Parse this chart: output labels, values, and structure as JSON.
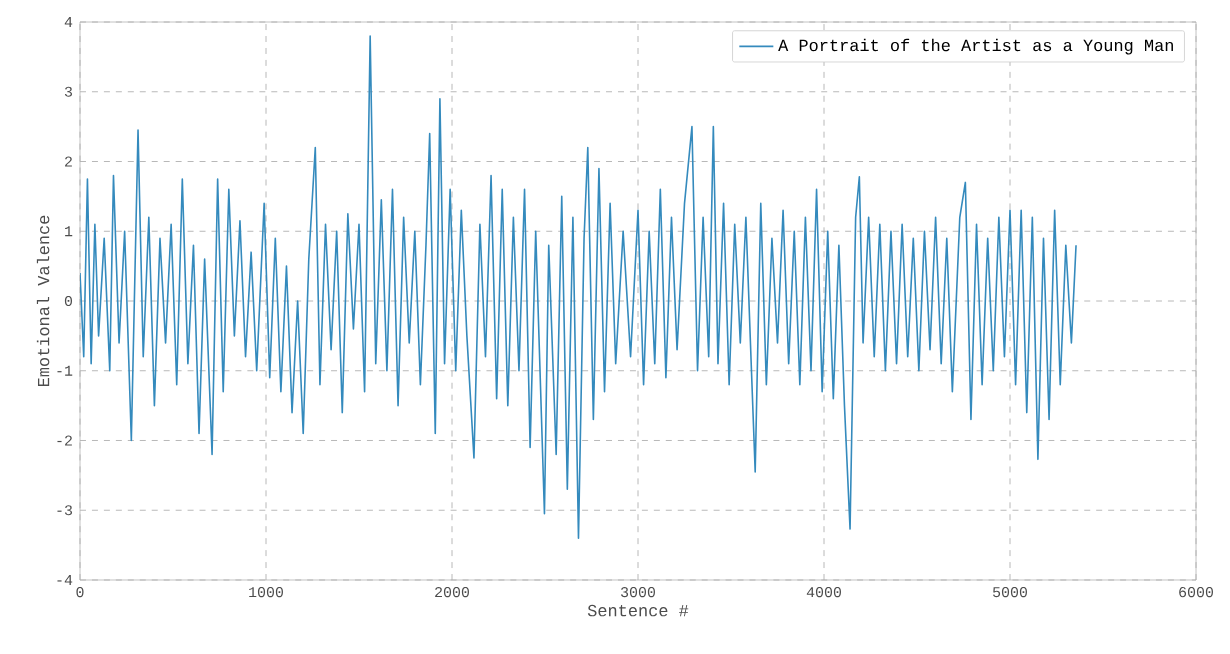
{
  "chart_data": {
    "type": "line",
    "xlabel": "Sentence #",
    "ylabel": "Emotional Valence",
    "xlim": [
      0,
      6000
    ],
    "ylim": [
      -4,
      4
    ],
    "xticks": [
      0,
      1000,
      2000,
      3000,
      4000,
      5000,
      6000
    ],
    "yticks": [
      -4,
      -3,
      -2,
      -1,
      0,
      1,
      2,
      3,
      4
    ],
    "grid": true,
    "legend": "top right",
    "line_style": "solid",
    "marker": "none",
    "x": [
      0,
      20,
      40,
      60,
      80,
      100,
      130,
      160,
      180,
      210,
      240,
      276,
      312,
      340,
      370,
      400,
      430,
      460,
      490,
      520,
      550,
      580,
      610,
      640,
      670,
      710,
      740,
      770,
      800,
      830,
      860,
      890,
      920,
      950,
      990,
      1020,
      1050,
      1080,
      1110,
      1140,
      1170,
      1200,
      1230,
      1265,
      1290,
      1320,
      1350,
      1380,
      1410,
      1440,
      1470,
      1500,
      1530,
      1560,
      1590,
      1620,
      1650,
      1680,
      1710,
      1740,
      1770,
      1800,
      1830,
      1860,
      1880,
      1910,
      1935,
      1960,
      1990,
      2020,
      2050,
      2080,
      2118,
      2150,
      2180,
      2210,
      2240,
      2270,
      2300,
      2330,
      2360,
      2390,
      2420,
      2450,
      2497,
      2520,
      2560,
      2590,
      2620,
      2650,
      2680,
      2710,
      2730,
      2760,
      2790,
      2820,
      2850,
      2880,
      2920,
      2960,
      3000,
      3030,
      3060,
      3090,
      3120,
      3150,
      3180,
      3210,
      3250,
      3290,
      3320,
      3350,
      3380,
      3405,
      3430,
      3460,
      3490,
      3520,
      3550,
      3580,
      3610,
      3630,
      3660,
      3690,
      3720,
      3750,
      3780,
      3810,
      3840,
      3870,
      3900,
      3930,
      3960,
      3990,
      4020,
      4050,
      4080,
      4110,
      4140,
      4170,
      4190,
      4210,
      4240,
      4270,
      4300,
      4330,
      4360,
      4390,
      4420,
      4450,
      4480,
      4510,
      4540,
      4570,
      4600,
      4630,
      4660,
      4690,
      4730,
      4760,
      4790,
      4820,
      4850,
      4880,
      4910,
      4940,
      4970,
      5000,
      5030,
      5060,
      5090,
      5120,
      5150,
      5180,
      5210,
      5240,
      5270,
      5300,
      5330,
      5355
    ],
    "series": [
      {
        "name": "A Portrait of the Artist as a Young Man",
        "color": "#348abd",
        "values": [
          0.4,
          -0.8,
          1.75,
          -0.9,
          1.1,
          -0.5,
          0.9,
          -1.0,
          1.8,
          -0.6,
          1.0,
          -2.0,
          2.45,
          -0.8,
          1.2,
          -1.5,
          0.9,
          -0.6,
          1.1,
          -1.2,
          1.75,
          -0.9,
          0.8,
          -1.9,
          0.6,
          -2.2,
          1.75,
          -1.3,
          1.6,
          -0.5,
          1.15,
          -0.8,
          0.7,
          -1.0,
          1.4,
          -1.1,
          0.9,
          -1.3,
          0.5,
          -1.6,
          0.0,
          -1.9,
          0.6,
          2.2,
          -1.2,
          1.1,
          -0.7,
          1.0,
          -1.6,
          1.25,
          -0.4,
          1.1,
          -1.3,
          3.8,
          -0.9,
          1.45,
          -1.0,
          1.6,
          -1.5,
          1.2,
          -0.6,
          1.0,
          -1.2,
          0.8,
          2.4,
          -1.9,
          2.9,
          -0.9,
          1.6,
          -1.0,
          1.3,
          -0.5,
          -2.25,
          1.1,
          -0.8,
          1.8,
          -1.4,
          1.6,
          -1.5,
          1.2,
          -1.0,
          1.6,
          -2.1,
          1.0,
          -3.05,
          0.8,
          -2.2,
          1.5,
          -2.7,
          1.2,
          -3.4,
          0.9,
          2.2,
          -1.7,
          1.9,
          -1.3,
          1.4,
          -0.9,
          1.0,
          -0.8,
          1.3,
          -1.2,
          1.0,
          -0.9,
          1.6,
          -1.1,
          1.2,
          -0.7,
          1.4,
          2.5,
          -1.0,
          1.2,
          -0.8,
          2.5,
          -0.9,
          1.4,
          -1.2,
          1.1,
          -0.6,
          1.2,
          -1.0,
          -2.45,
          1.4,
          -1.2,
          0.9,
          -0.6,
          1.3,
          -0.9,
          1.0,
          -1.2,
          1.2,
          -1.0,
          1.6,
          -1.3,
          1.0,
          -1.4,
          0.8,
          -1.5,
          -3.27,
          1.2,
          1.78,
          -0.6,
          1.2,
          -0.8,
          1.1,
          -1.0,
          1.0,
          -0.9,
          1.1,
          -0.8,
          0.9,
          -1.0,
          1.0,
          -0.7,
          1.2,
          -0.9,
          0.9,
          -1.3,
          1.2,
          1.7,
          -1.7,
          1.1,
          -1.2,
          0.9,
          -1.0,
          1.2,
          -0.8,
          1.3,
          -1.2,
          1.3,
          -1.6,
          1.2,
          -2.27,
          0.9,
          -1.7,
          1.3,
          -1.2,
          0.8,
          -0.6,
          0.8
        ]
      }
    ]
  }
}
